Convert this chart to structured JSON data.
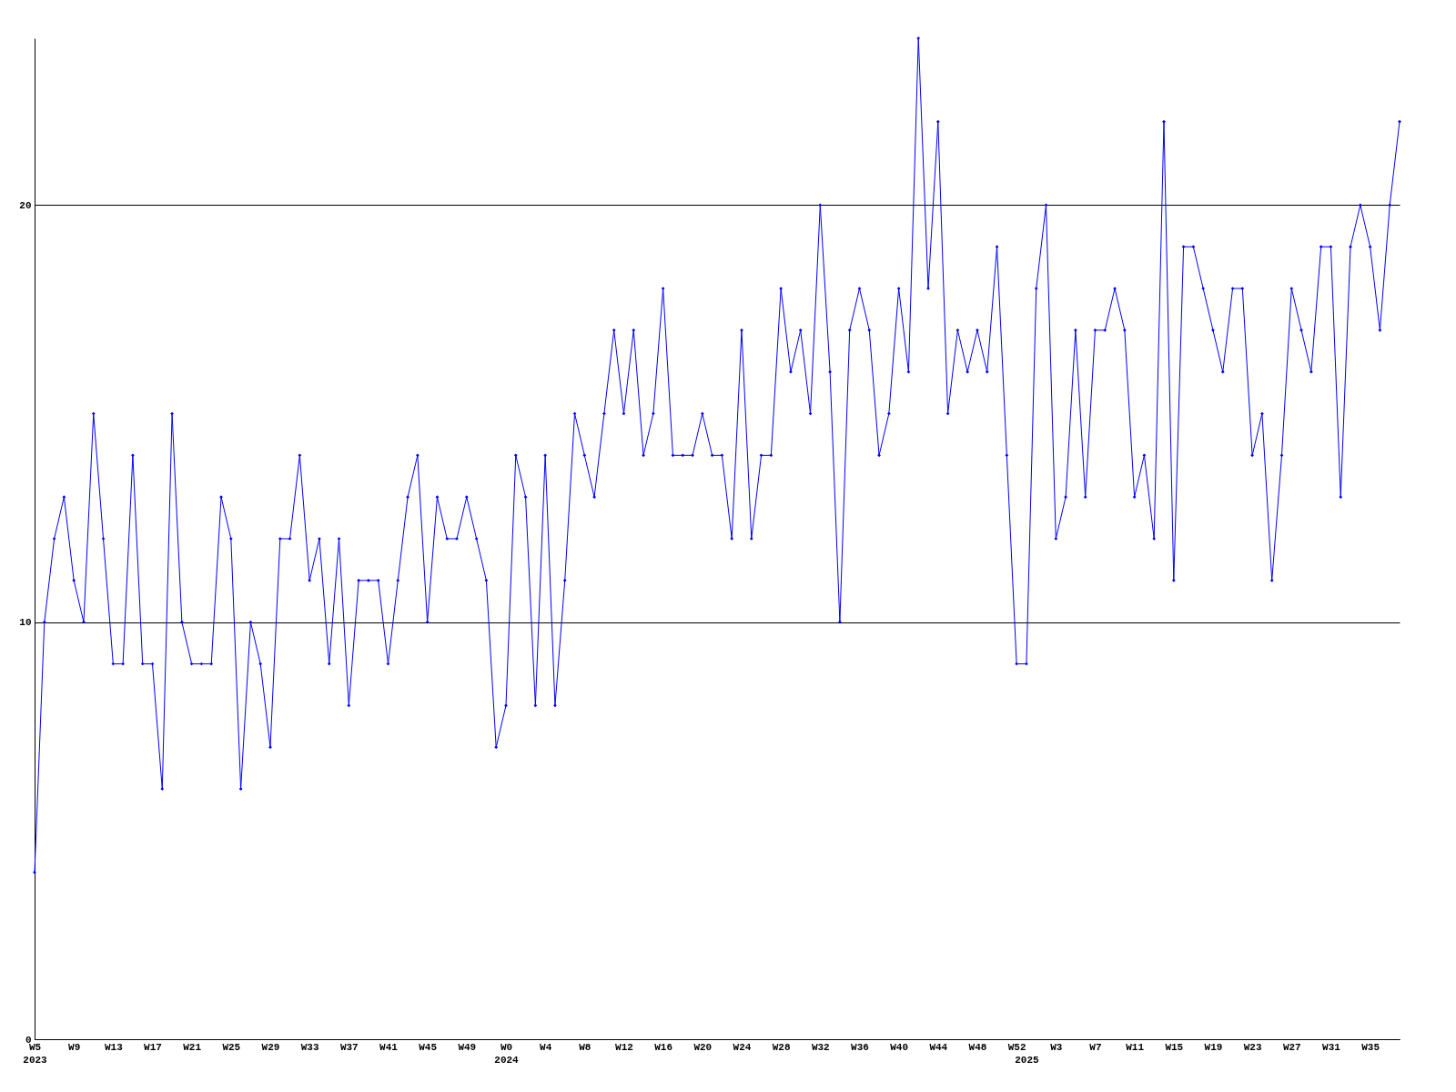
{
  "chart_data": {
    "type": "line",
    "categories": [
      "W5\n2023",
      null,
      null,
      null,
      "W9",
      null,
      null,
      null,
      "W13",
      null,
      null,
      null,
      "W17",
      null,
      null,
      null,
      "W21",
      null,
      null,
      null,
      "W25",
      null,
      null,
      null,
      "W29",
      null,
      null,
      null,
      "W33",
      null,
      null,
      null,
      "W37",
      null,
      null,
      null,
      "W41",
      null,
      null,
      null,
      "W45",
      null,
      null,
      null,
      "W49",
      null,
      null,
      null,
      "W0\n2024",
      null,
      null,
      null,
      "W4",
      null,
      null,
      null,
      "W8",
      null,
      null,
      null,
      "W12",
      null,
      null,
      null,
      "W16",
      null,
      null,
      null,
      "W20",
      null,
      null,
      null,
      "W24",
      null,
      null,
      null,
      "W28",
      null,
      null,
      null,
      "W32",
      null,
      null,
      null,
      "W36",
      null,
      null,
      null,
      "W40",
      null,
      null,
      null,
      "W44",
      null,
      null,
      null,
      "W48",
      null,
      null,
      null,
      "W52",
      "\n2025",
      null,
      null,
      "W3",
      null,
      null,
      null,
      "W7",
      null,
      null,
      null,
      "W11",
      null,
      null,
      null,
      "W15",
      null,
      null,
      null,
      "W19",
      null,
      null,
      null,
      "W23",
      null,
      null,
      null,
      "W27",
      null,
      null,
      null,
      "W31",
      null,
      null,
      null,
      "W35",
      null,
      null,
      null
    ],
    "series": [
      {
        "color": "#0000ff",
        "values": [
          4,
          10,
          12,
          13,
          11,
          10,
          15,
          12,
          9,
          9,
          14,
          9,
          9,
          6,
          15,
          10,
          9,
          9,
          9,
          13,
          12,
          6,
          10,
          9,
          7,
          12,
          12,
          14,
          11,
          12,
          9,
          12,
          8,
          11,
          11,
          11,
          9,
          11,
          13,
          14,
          10,
          13,
          12,
          12,
          13,
          12,
          11,
          7,
          8,
          14,
          13,
          8,
          14,
          8,
          11,
          15,
          14,
          13,
          15,
          17,
          15,
          17,
          14,
          15,
          18,
          14,
          14,
          14,
          15,
          14,
          14,
          12,
          17,
          12,
          14,
          14,
          18,
          16,
          17,
          15,
          20,
          16,
          10,
          17,
          18,
          17,
          14,
          15,
          18,
          16,
          24,
          18,
          22,
          15,
          17,
          16,
          17,
          16,
          19,
          14,
          9,
          9,
          18,
          20,
          12,
          13,
          17,
          13,
          17,
          17,
          18,
          17,
          13,
          14,
          12,
          22,
          11,
          19,
          19,
          18,
          17,
          16,
          18,
          18,
          14,
          15,
          11,
          14,
          18,
          17,
          16,
          19,
          19,
          13,
          19,
          20,
          19,
          17,
          20,
          22
        ]
      }
    ],
    "ylim": [
      0,
      24
    ],
    "yticks": [
      0,
      10,
      20
    ],
    "grid": "y",
    "marker": "diamond",
    "line_style": "solid"
  }
}
